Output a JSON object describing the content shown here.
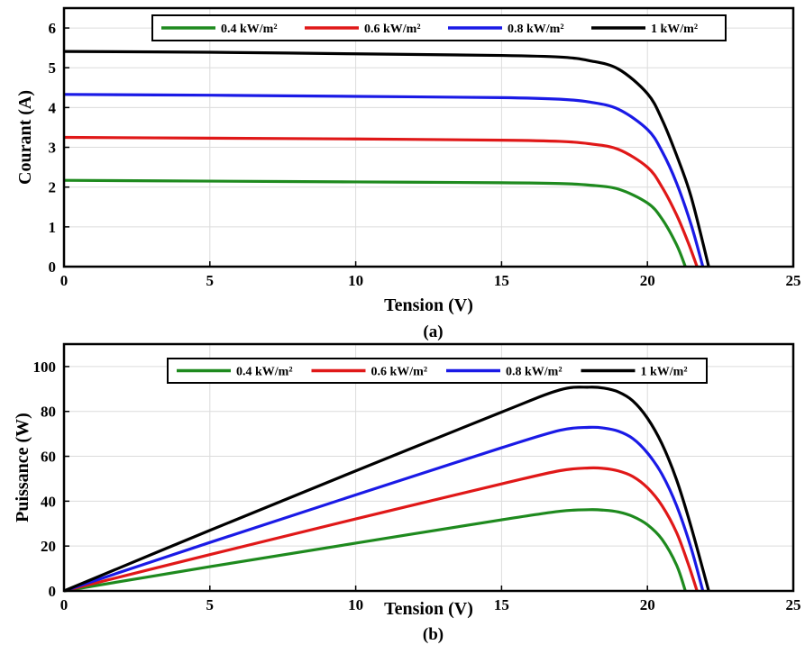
{
  "colors": {
    "0.4": "#1e8a1e",
    "0.6": "#e01818",
    "0.8": "#1a1ae6",
    "1": "#000000",
    "grid": "#dcdcdc"
  },
  "chart_data": [
    {
      "type": "line",
      "caption": "(a)",
      "xlabel": "Tension (V)",
      "ylabel": "Courant (A)",
      "xlim": [
        0,
        25
      ],
      "ylim": [
        0,
        6.5
      ],
      "xticks": [
        "0",
        "5",
        "10",
        "15",
        "20",
        "25"
      ],
      "yticks": [
        "0",
        "1",
        "2",
        "3",
        "4",
        "5",
        "6"
      ],
      "grid": true,
      "legend_position": "top-center",
      "series": [
        {
          "name": "0.4 kW/m²",
          "color_key": "0.4",
          "x": [
            0,
            5,
            10,
            15,
            17,
            18,
            19,
            20,
            20.5,
            21,
            21.3
          ],
          "y": [
            2.17,
            2.15,
            2.13,
            2.11,
            2.09,
            2.05,
            1.95,
            1.6,
            1.2,
            0.55,
            0
          ]
        },
        {
          "name": "0.6 kW/m²",
          "color_key": "0.6",
          "x": [
            0,
            5,
            10,
            15,
            17,
            18,
            19,
            20,
            20.5,
            21,
            21.4,
            21.7
          ],
          "y": [
            3.25,
            3.23,
            3.21,
            3.18,
            3.15,
            3.09,
            2.95,
            2.5,
            2.0,
            1.3,
            0.6,
            0
          ]
        },
        {
          "name": "0.8 kW/m²",
          "color_key": "0.8",
          "x": [
            0,
            5,
            10,
            15,
            17,
            18,
            19,
            20,
            20.5,
            21,
            21.5,
            21.9
          ],
          "y": [
            4.33,
            4.31,
            4.28,
            4.25,
            4.21,
            4.14,
            3.96,
            3.45,
            2.9,
            2.1,
            1.05,
            0
          ]
        },
        {
          "name": "1 kW/m²",
          "color_key": "1",
          "x": [
            0,
            5,
            10,
            15,
            17,
            18,
            19,
            20,
            20.5,
            21,
            21.5,
            22.1
          ],
          "y": [
            5.41,
            5.39,
            5.35,
            5.31,
            5.27,
            5.18,
            4.97,
            4.35,
            3.7,
            2.8,
            1.75,
            0
          ]
        }
      ]
    },
    {
      "type": "line",
      "caption": "(b)",
      "xlabel": "Tension (V)",
      "ylabel": "Puissance (W)",
      "xlim": [
        0,
        25
      ],
      "ylim": [
        0,
        110
      ],
      "xticks": [
        "0",
        "5",
        "10",
        "15",
        "20",
        "25"
      ],
      "yticks": [
        "0",
        "20",
        "40",
        "60",
        "80",
        "100"
      ],
      "grid": true,
      "legend_position": "top-center",
      "series": [
        {
          "name": "0.4 kW/m²",
          "color_key": "0.4",
          "x": [
            0,
            5,
            10,
            15,
            17,
            18,
            18.5,
            19,
            19.5,
            20,
            20.5,
            21,
            21.3
          ],
          "y": [
            0,
            10.8,
            21.3,
            31.7,
            35.5,
            36.2,
            36.0,
            35.2,
            33.2,
            29.5,
            23.0,
            11.5,
            0
          ]
        },
        {
          "name": "0.6 kW/m²",
          "color_key": "0.6",
          "x": [
            0,
            5,
            10,
            15,
            17,
            18,
            18.5,
            19,
            19.5,
            20,
            20.5,
            21,
            21.4,
            21.7
          ],
          "y": [
            0,
            16.2,
            32.1,
            47.7,
            53.6,
            54.8,
            54.6,
            53.5,
            51.0,
            46.0,
            38.0,
            26.0,
            12.0,
            0
          ]
        },
        {
          "name": "0.8 kW/m²",
          "color_key": "0.8",
          "x": [
            0,
            5,
            10,
            15,
            17,
            18,
            18.5,
            19,
            19.5,
            20,
            20.5,
            21,
            21.5,
            21.9
          ],
          "y": [
            0,
            21.6,
            42.8,
            63.8,
            71.6,
            72.9,
            72.6,
            71.2,
            67.9,
            61.5,
            52.0,
            38.0,
            19.0,
            0
          ]
        },
        {
          "name": "1 kW/m²",
          "color_key": "1",
          "x": [
            0,
            5,
            10,
            15,
            17,
            18,
            18.5,
            19,
            19.5,
            20,
            20.5,
            21,
            21.5,
            22.1
          ],
          "y": [
            0,
            27.0,
            53.5,
            79.7,
            89.6,
            90.8,
            90.4,
            88.7,
            84.7,
            77.0,
            65.5,
            49.5,
            28.5,
            0
          ]
        }
      ]
    }
  ]
}
